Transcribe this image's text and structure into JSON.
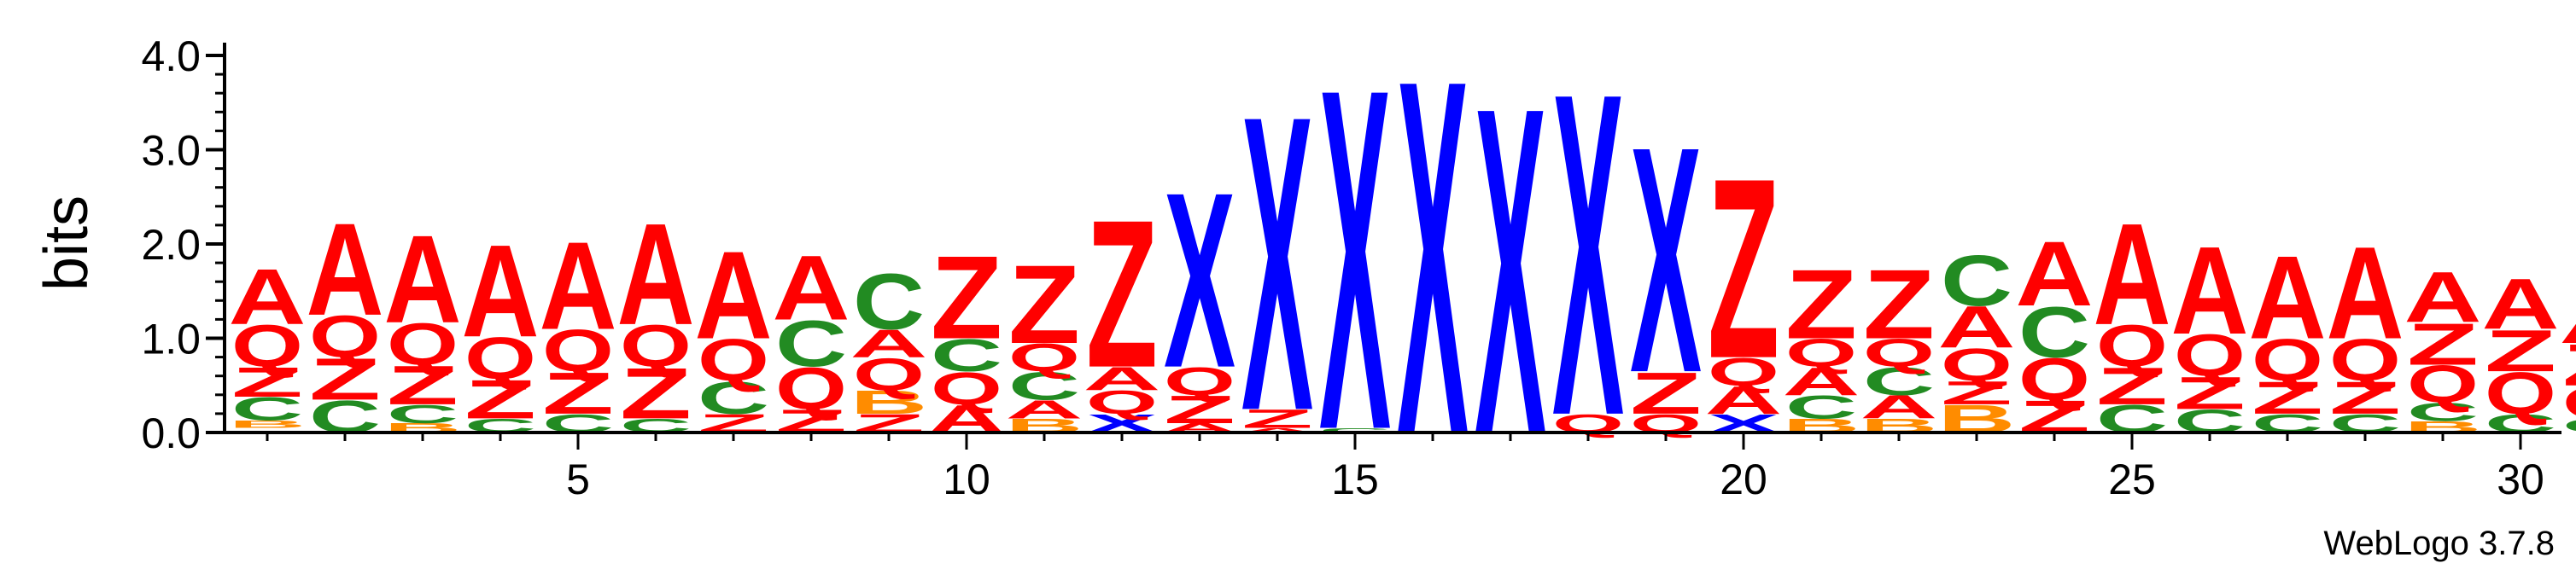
{
  "chart_data": {
    "type": "sequence-logo",
    "ylabel": "bits",
    "ylim": [
      0,
      4.0
    ],
    "y_ticks": [
      "0.0",
      "1.0",
      "2.0",
      "3.0",
      "4.0"
    ],
    "x_ticks": [
      "5",
      "10",
      "15",
      "20",
      "25",
      "30"
    ],
    "tick_positions": [
      5,
      10,
      15,
      20,
      25,
      30
    ],
    "footer": "WebLogo 3.7.8",
    "colors": {
      "A": "#ff0000",
      "Q": "#ff0000",
      "Z": "#ff0000",
      "C": "#228b22",
      "B": "#ff8c00",
      "X": "#0000ff",
      "_": "#7f00ff"
    },
    "columns": [
      [
        [
          "_",
          0.05
        ],
        [
          "B",
          0.08
        ],
        [
          "C",
          0.25
        ],
        [
          "Z",
          0.32
        ],
        [
          "Q",
          0.45
        ],
        [
          "A",
          0.6
        ]
      ],
      [
        [
          "C",
          0.35
        ],
        [
          "Z",
          0.45
        ],
        [
          "Q",
          0.45
        ],
        [
          "A",
          1.0
        ]
      ],
      [
        [
          "B",
          0.1
        ],
        [
          "C",
          0.2
        ],
        [
          "Z",
          0.42
        ],
        [
          "Q",
          0.45
        ],
        [
          "A",
          0.95
        ]
      ],
      [
        [
          "C",
          0.15
        ],
        [
          "Z",
          0.42
        ],
        [
          "Q",
          0.45
        ],
        [
          "A",
          1.0
        ]
      ],
      [
        [
          "C",
          0.2
        ],
        [
          "Z",
          0.45
        ],
        [
          "Q",
          0.45
        ],
        [
          "A",
          0.95
        ]
      ],
      [
        [
          "C",
          0.15
        ],
        [
          "Z",
          0.55
        ],
        [
          "Q",
          0.45
        ],
        [
          "A",
          1.1
        ]
      ],
      [
        [
          "Z",
          0.2
        ],
        [
          "C",
          0.35
        ],
        [
          "Q",
          0.45
        ],
        [
          "A",
          0.95
        ]
      ],
      [
        [
          "Z",
          0.25
        ],
        [
          "Q",
          0.45
        ],
        [
          "C",
          0.5
        ],
        [
          "A",
          0.7
        ]
      ],
      [
        [
          "Z",
          0.2
        ],
        [
          "B",
          0.25
        ],
        [
          "Q",
          0.35
        ],
        [
          "A",
          0.3
        ],
        [
          "C",
          0.6
        ]
      ],
      [
        [
          "A",
          0.3
        ],
        [
          "Q",
          0.35
        ],
        [
          "C",
          0.35
        ],
        [
          "Z",
          0.9
        ]
      ],
      [
        [
          "B",
          0.15
        ],
        [
          "A",
          0.2
        ],
        [
          "C",
          0.3
        ],
        [
          "Q",
          0.3
        ],
        [
          "Z",
          0.85
        ]
      ],
      [
        [
          "X",
          0.2
        ],
        [
          "Q",
          0.25
        ],
        [
          "A",
          0.25
        ],
        [
          "Z",
          1.6
        ]
      ],
      [
        [
          "A",
          0.1
        ],
        [
          "Z",
          0.3
        ],
        [
          "Q",
          0.3
        ],
        [
          "X",
          1.9
        ]
      ],
      [
        [
          "A",
          0.05
        ],
        [
          "Z",
          0.2
        ],
        [
          "X",
          3.2
        ]
      ],
      [
        [
          "C",
          0.05
        ],
        [
          "X",
          3.7
        ]
      ],
      [
        [
          "X",
          3.85
        ]
      ],
      [
        [
          "X",
          3.55
        ]
      ],
      [
        [
          "Q",
          0.2
        ],
        [
          "X",
          3.5
        ]
      ],
      [
        [
          "Q",
          0.2
        ],
        [
          "Z",
          0.45
        ],
        [
          "X",
          2.45
        ]
      ],
      [
        [
          "X",
          0.2
        ],
        [
          "A",
          0.3
        ],
        [
          "Q",
          0.3
        ],
        [
          "Z",
          1.95
        ]
      ],
      [
        [
          "B",
          0.15
        ],
        [
          "C",
          0.25
        ],
        [
          "A",
          0.3
        ],
        [
          "Q",
          0.3
        ],
        [
          "Z",
          0.75
        ]
      ],
      [
        [
          "B",
          0.15
        ],
        [
          "A",
          0.25
        ],
        [
          "C",
          0.3
        ],
        [
          "Q",
          0.3
        ],
        [
          "Z",
          0.75
        ]
      ],
      [
        [
          "B",
          0.3
        ],
        [
          "Z",
          0.25
        ],
        [
          "Q",
          0.35
        ],
        [
          "A",
          0.45
        ],
        [
          "C",
          0.55
        ]
      ],
      [
        [
          "Z",
          0.35
        ],
        [
          "Q",
          0.45
        ],
        [
          "C",
          0.55
        ],
        [
          "A",
          0.7
        ]
      ],
      [
        [
          "C",
          0.3
        ],
        [
          "Z",
          0.4
        ],
        [
          "Q",
          0.45
        ],
        [
          "A",
          1.1
        ]
      ],
      [
        [
          "C",
          0.25
        ],
        [
          "Z",
          0.35
        ],
        [
          "Q",
          0.45
        ],
        [
          "A",
          0.95
        ]
      ],
      [
        [
          "C",
          0.2
        ],
        [
          "Z",
          0.35
        ],
        [
          "Q",
          0.45
        ],
        [
          "A",
          0.9
        ]
      ],
      [
        [
          "C",
          0.2
        ],
        [
          "Z",
          0.35
        ],
        [
          "Q",
          0.45
        ],
        [
          "A",
          1.0
        ]
      ],
      [
        [
          "B",
          0.12
        ],
        [
          "C",
          0.2
        ],
        [
          "Q",
          0.4
        ],
        [
          "Z",
          0.45
        ],
        [
          "A",
          0.55
        ]
      ],
      [
        [
          "C",
          0.2
        ],
        [
          "Q",
          0.45
        ],
        [
          "Z",
          0.45
        ],
        [
          "A",
          0.55
        ]
      ],
      [
        [
          "C",
          0.15
        ],
        [
          "Q",
          0.35
        ],
        [
          "Z",
          0.45
        ],
        [
          "A",
          0.4
        ]
      ]
    ]
  }
}
